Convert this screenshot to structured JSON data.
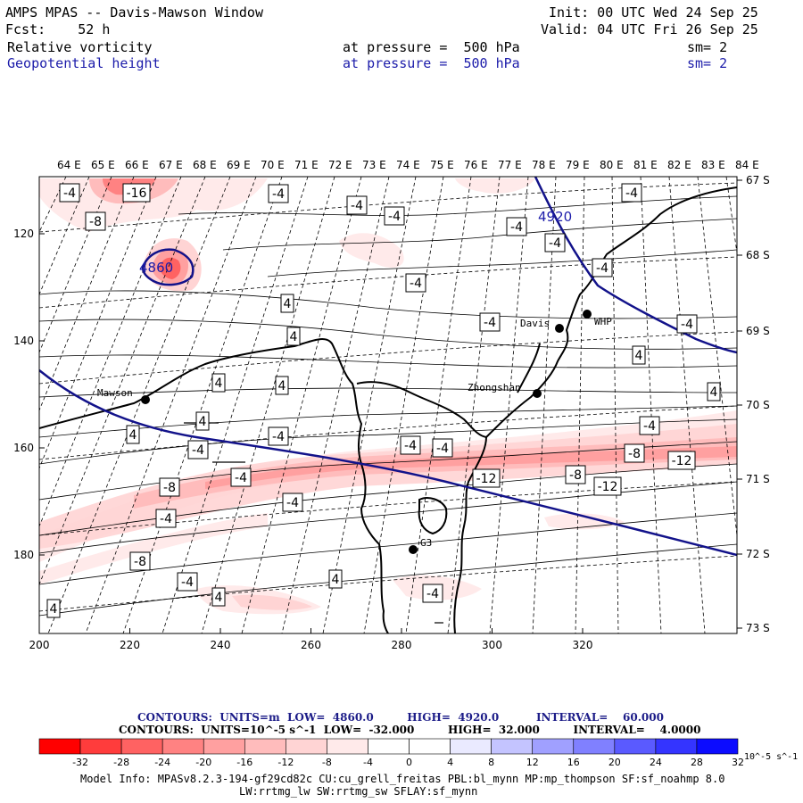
{
  "header": {
    "title": "AMPS MPAS -- Davis-Mawson Window",
    "init": "Init: 00 UTC Wed 24 Sep 25",
    "fcst": "Fcst:    52 h",
    "valid": "Valid: 04 UTC Fri 26 Sep 25",
    "field1": {
      "name": "Relative vorticity",
      "level": "at pressure =  500 hPa",
      "sm": "sm= 2"
    },
    "field2": {
      "name": "Geopotential height",
      "level": "at pressure =  500 hPa",
      "sm": "sm= 2"
    }
  },
  "map": {
    "top_lon_labels": [
      "64 E",
      "65 E",
      "66 E",
      "67 E",
      "68 E",
      "69 E",
      "70 E",
      "71 E",
      "72 E",
      "73 E",
      "74 E",
      "75 E",
      "76 E",
      "77 E",
      "78 E",
      "79 E",
      "80 E",
      "81 E",
      "82 E",
      "83 E",
      "84 E"
    ],
    "right_lat_labels": [
      "67 S",
      "68 S",
      "69 S",
      "70 S",
      "71 S",
      "72 S",
      "73 S"
    ],
    "x_ticks": [
      "200",
      "220",
      "240",
      "260",
      "280",
      "300",
      "320"
    ],
    "y_ticks": [
      "120",
      "140",
      "160",
      "180"
    ],
    "stations": [
      {
        "name": "Mawson"
      },
      {
        "name": "Davis"
      },
      {
        "name": "WHP"
      },
      {
        "name": "Zhongshan"
      },
      {
        "name": "G3"
      }
    ],
    "height_labels": [
      "4920",
      "4860"
    ],
    "vort_labels": [
      "-4",
      "-16",
      "-8",
      "-4",
      "-4",
      "-4",
      "-4",
      "-4",
      "-4",
      "-4",
      "-4",
      "-4",
      "-4",
      "4",
      "4",
      "4",
      "4",
      "4",
      "4",
      "4",
      "4",
      "-4",
      "-4",
      "-4",
      "-4",
      "-4",
      "-4",
      "-8",
      "-12",
      "-8",
      "-8",
      "-12",
      "-12",
      "-4",
      "-4",
      "-8",
      "-4",
      "4",
      "4",
      "4",
      "-4",
      "4",
      "-4",
      "-4"
    ],
    "colors": {
      "height_contour": "#12128a",
      "coast": "#000000"
    }
  },
  "legend": {
    "contours1": "CONTOURS:  UNITS=m  LOW=  4860.0         HIGH=  4920.0          INTERVAL=    60.000",
    "contours2": "CONTOURS:  UNITS=10^-5 s^-1  LOW=  -32.000         HIGH=  32.000         INTERVAL=    4.0000",
    "ticks": [
      "-32",
      "-28",
      "-24",
      "-20",
      "-16",
      "-12",
      "-8",
      "-4",
      "0",
      "4",
      "8",
      "12",
      "16",
      "20",
      "24",
      "28",
      "32"
    ],
    "unit": "10^-5 s^-1",
    "colors": [
      "#ff0000",
      "#ff3c3c",
      "#ff6262",
      "#ff8282",
      "#ffa0a0",
      "#ffbcbc",
      "#ffd4d4",
      "#ffeaea",
      "#ffffff",
      "#ffffff",
      "#eaeaff",
      "#c4c4ff",
      "#a0a0ff",
      "#8080ff",
      "#5a5aff",
      "#3434ff",
      "#0c0cff"
    ]
  },
  "footer": {
    "model_info": "Model Info: MPASv8.2.3-194-gf29cd82c CU:cu_grell_freitas PBL:bl_mynn MP:mp_thompson SF:sf_noahmp 8.0",
    "model_info2": "LW:rrtmg_lw SW:rrtmg_sw SFLAY:sf_mynn"
  }
}
